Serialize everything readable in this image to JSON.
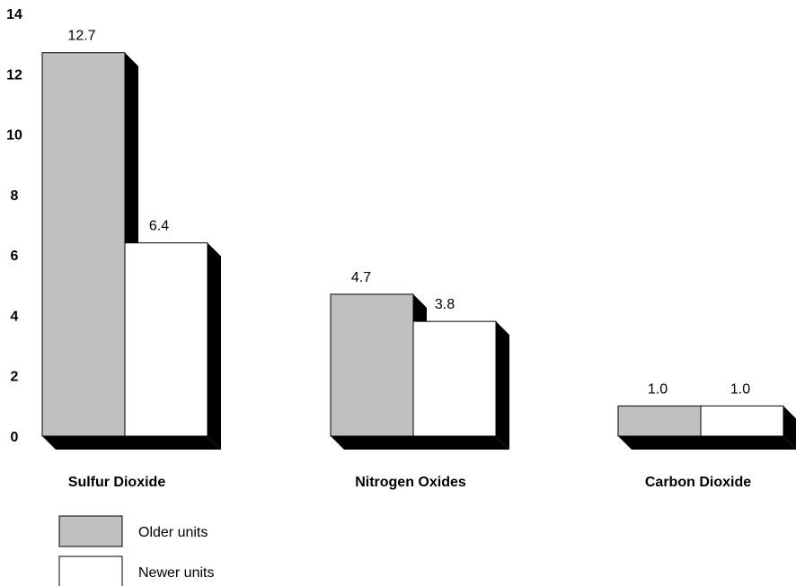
{
  "chart_data": {
    "type": "bar",
    "categories": [
      "Sulfur Dioxide",
      "Nitrogen Oxides",
      "Carbon Dioxide"
    ],
    "series": [
      {
        "name": "Older units",
        "values": [
          12.7,
          4.7,
          1.0
        ],
        "labels": [
          "12.7",
          "4.7",
          "1.0"
        ],
        "color": "#c0c0c0"
      },
      {
        "name": "Newer units",
        "values": [
          6.4,
          3.8,
          1.0
        ],
        "labels": [
          "6.4",
          "3.8",
          "1.0"
        ],
        "color": "#ffffff"
      }
    ],
    "yticks": [
      "0",
      "2",
      "4",
      "6",
      "8",
      "10",
      "12",
      "14"
    ],
    "ylim": [
      0,
      14
    ],
    "title": "",
    "xlabel": "",
    "ylabel": "",
    "grid": false,
    "legend_position": "bottom-left",
    "style": "3d-shadow"
  }
}
